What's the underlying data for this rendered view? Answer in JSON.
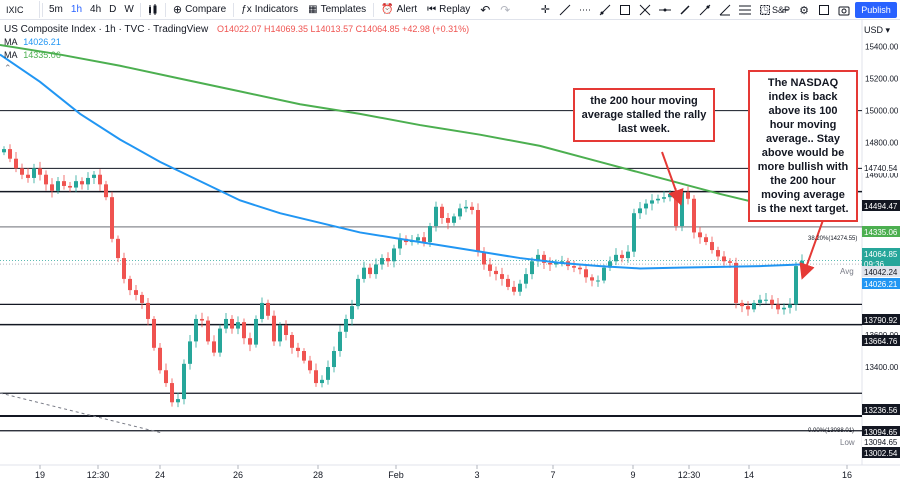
{
  "toolbar": {
    "symbol": "IXIC",
    "timeframes": [
      "5m",
      "1h",
      "4h",
      "D",
      "W"
    ],
    "active_timeframe": "1h",
    "compare_label": "Compare",
    "indicators_label": "Indicators",
    "templates_label": "Templates",
    "alert_label": "Alert",
    "replay_label": "Replay",
    "sp_label": "S&P",
    "publish_label": "Publish"
  },
  "legend": {
    "title": "US Composite Index · 1h · TVC · TradingView",
    "ohlc": "O14022.07 H14069.35 L14013.57 C14064.85 +42.98 (+0.31%)",
    "ma1_label": "MA",
    "ma1_value": "14026.21",
    "ma2_label": "MA",
    "ma2_value": "14335.06"
  },
  "price_axis": {
    "currency": "USD",
    "ticks": [
      "15400.00",
      "15200.00",
      "15000.00",
      "14800.00",
      "14600.00",
      "14400.00",
      "13600.00",
      "13400.00"
    ],
    "labels": [
      {
        "text": "14740.54",
        "bg": "#ffffff",
        "fg": "#131722"
      },
      {
        "text": "14494.47",
        "bg": "#131722",
        "fg": "#ffffff"
      },
      {
        "text": "14335.06",
        "bg": "#4caf50",
        "fg": "#ffffff"
      },
      {
        "text": "14064.85",
        "bg": "#26a69a",
        "fg": "#ffffff"
      },
      {
        "text": "09:36",
        "bg": "#26a69a",
        "fg": "#ffffff"
      },
      {
        "text": "14042.24",
        "bg": "#e0e3eb",
        "fg": "#131722"
      },
      {
        "text": "14026.21",
        "bg": "#2196f3",
        "fg": "#ffffff"
      },
      {
        "text": "13790.92",
        "bg": "#131722",
        "fg": "#ffffff"
      },
      {
        "text": "13664.76",
        "bg": "#131722",
        "fg": "#ffffff"
      },
      {
        "text": "13236.56",
        "bg": "#131722",
        "fg": "#ffffff"
      },
      {
        "text": "13094.65",
        "bg": "#131722",
        "fg": "#ffffff"
      },
      {
        "text": "13094.65",
        "bg": "#ffffff",
        "fg": "#131722"
      },
      {
        "text": "13002.54",
        "bg": "#131722",
        "fg": "#ffffff"
      }
    ],
    "avg_label": "Avg",
    "low_label": "Low"
  },
  "time_axis": {
    "ticks": [
      "19",
      "12:30",
      "24",
      "26",
      "28",
      "Feb",
      "3",
      "7",
      "9",
      "12:30",
      "14",
      "16"
    ]
  },
  "fib": {
    "level_38": "38.20%(14274.55)",
    "level_0": "0.00%(13088.01)"
  },
  "annotations": {
    "left": "the 200 hour moving average stalled the rally last week.",
    "right": "The NASDAQ index is back above its 100 hour moving average.. Stay above would be more bullish with the 200 hour moving average is the next target."
  },
  "colors": {
    "up": "#26a69a",
    "down": "#ef5350",
    "ma100": "#2196f3",
    "ma200": "#4caf50",
    "arrow": "#e53935",
    "accent": "#2962ff"
  },
  "chart_data": {
    "type": "candlestick",
    "title": "US Composite Index · 1h · TVC",
    "horizontal_levels": [
      14494.47,
      13790.92,
      13664.76,
      13236.56,
      13094.65,
      13002.54
    ],
    "ma100_last": 14026.21,
    "ma200_last": 14335.06,
    "last_close": 14064.85,
    "ylim": [
      12950,
      15550
    ]
  }
}
